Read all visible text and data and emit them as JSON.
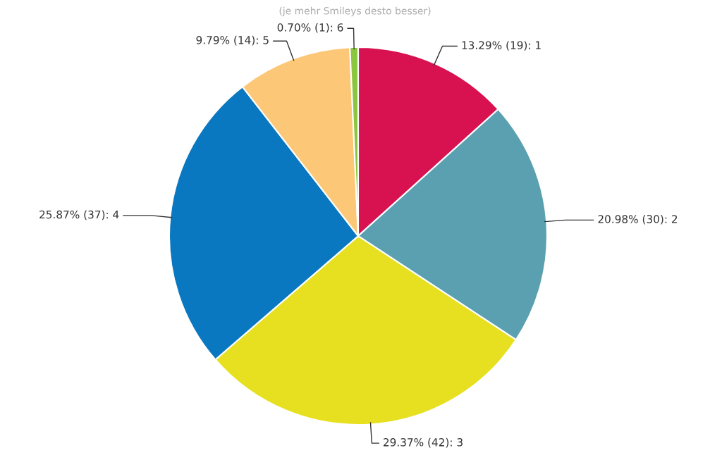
{
  "chart_data": {
    "type": "pie",
    "subtitle": "(je mehr Smileys desto besser)",
    "categories": [
      "1",
      "2",
      "3",
      "4",
      "5",
      "6"
    ],
    "values": [
      19,
      30,
      42,
      37,
      14,
      1
    ],
    "value_labels": [
      "13.29% (19)",
      "20.98% (30)",
      "29.37% (42)",
      "25.87% (37)",
      "9.79% (14)",
      "0.70% (1)"
    ],
    "colors": [
      "#d81250",
      "#5aa0b0",
      "#e6e020",
      "#0a78c0",
      "#fcc878",
      "#8cc63f"
    ],
    "legend": false
  }
}
